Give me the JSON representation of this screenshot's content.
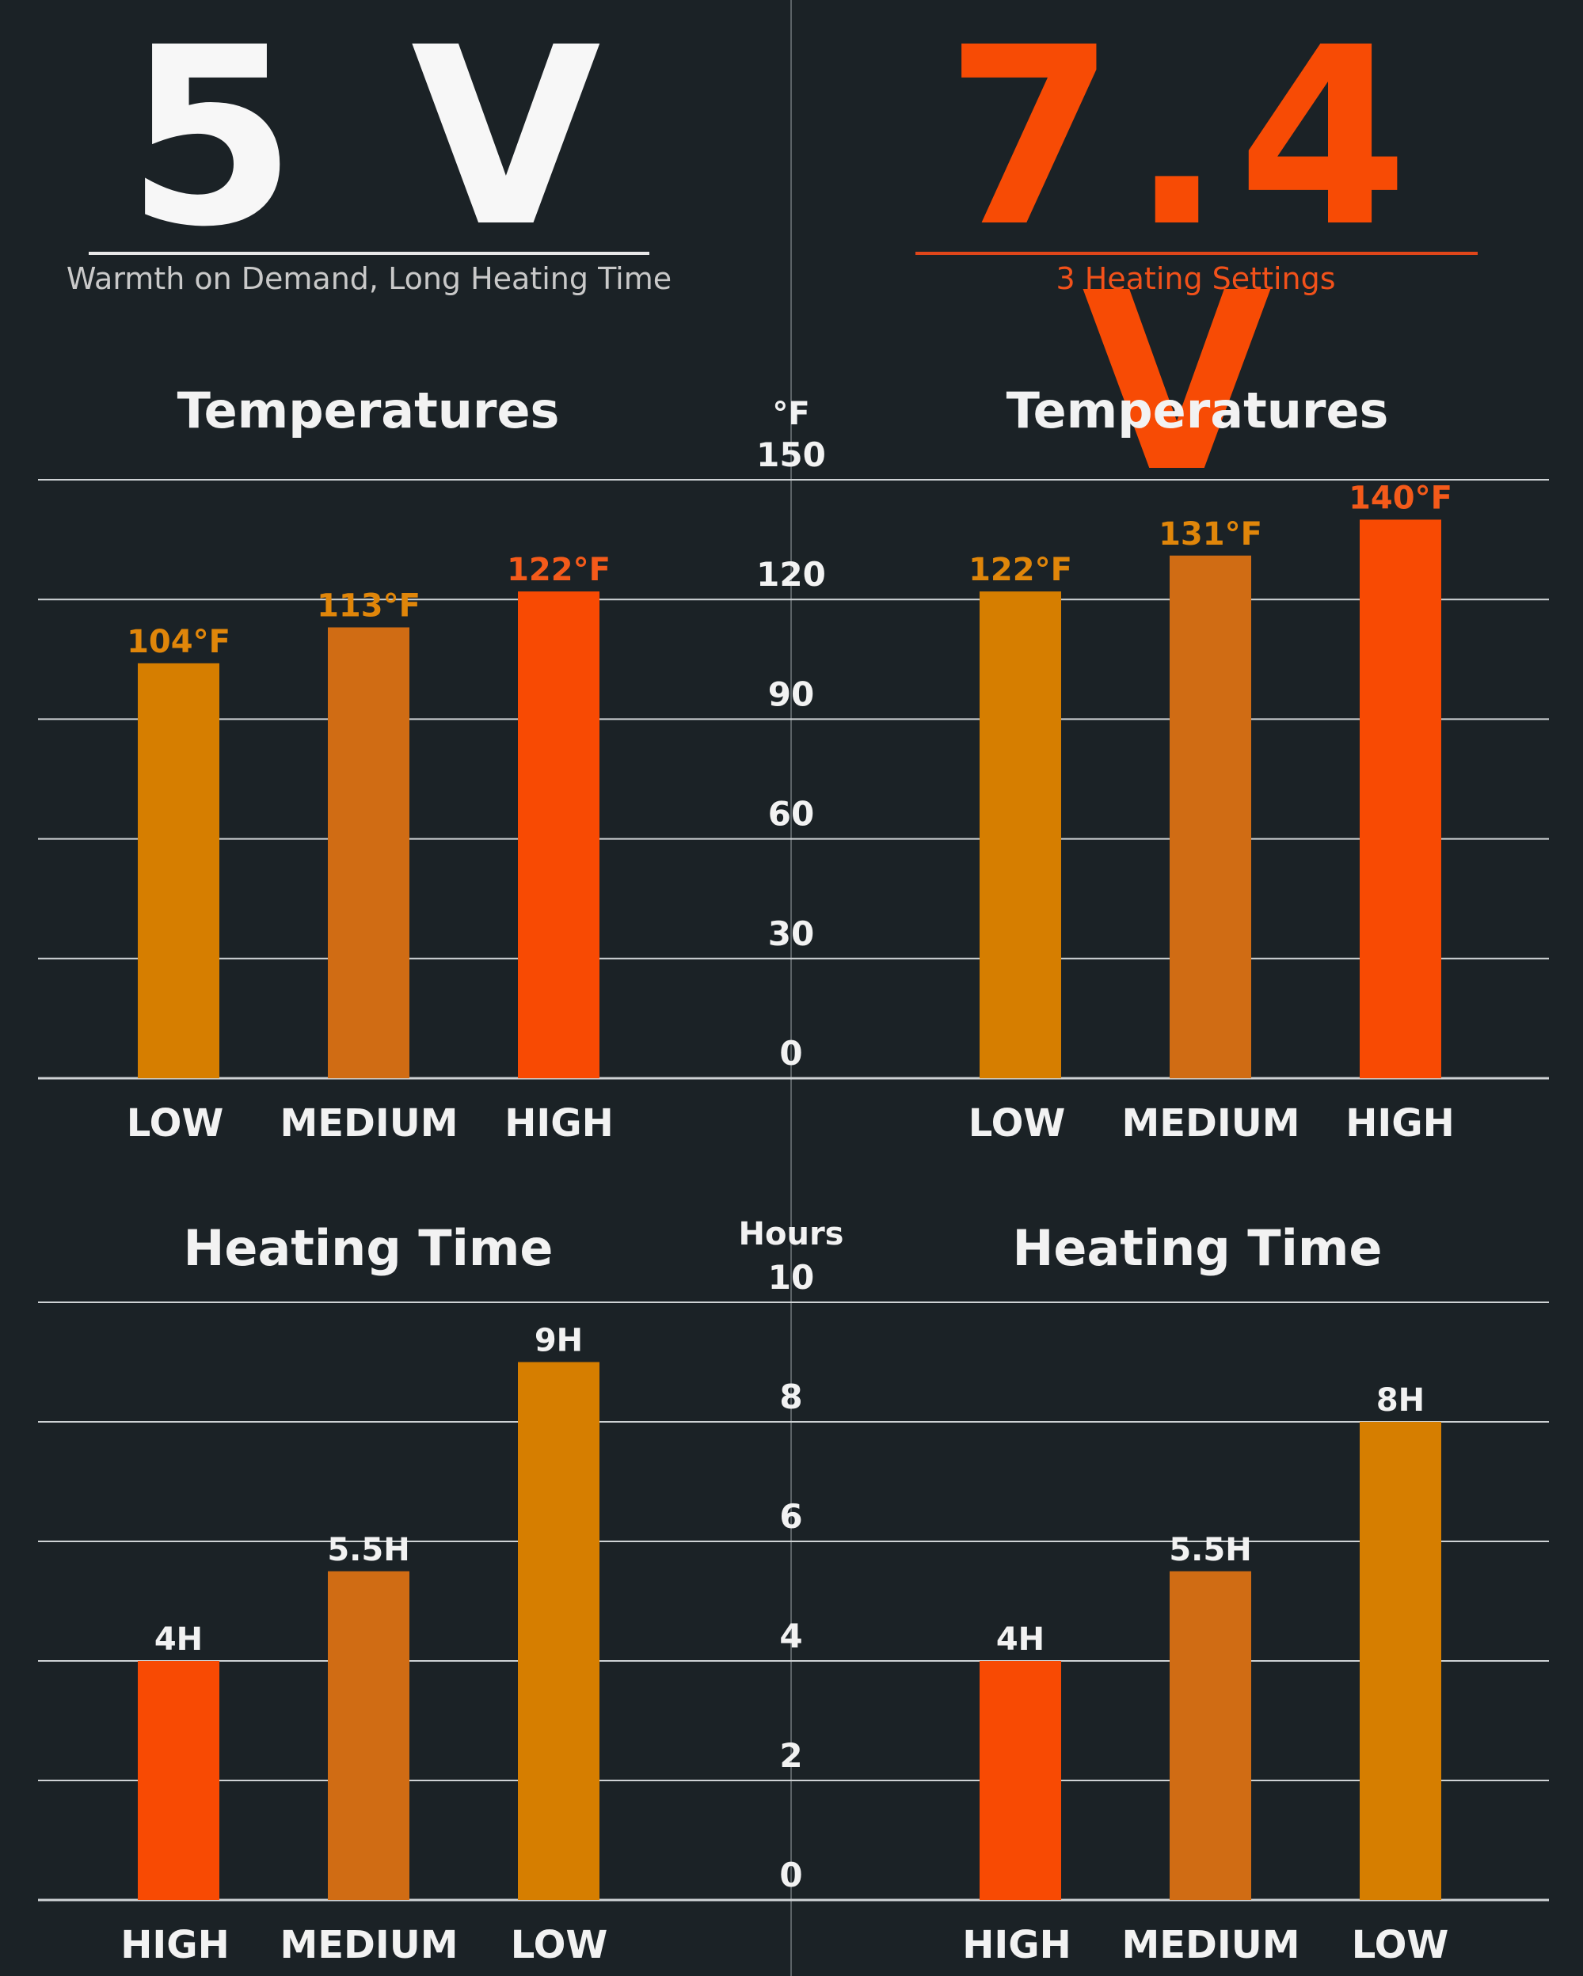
{
  "header": {
    "left_voltage": "5 V",
    "left_subtitle": "Warmth on Demand, Long Heating Time",
    "right_voltage": "7.4 V",
    "right_subtitle": "3 Heating Settings"
  },
  "colors": {
    "background": "#1b2226",
    "bar_amber": "#d67e00",
    "bar_dark_orange": "#d06c14",
    "bar_red_orange": "#f84a03",
    "label_amber": "#e0860a",
    "label_orange": "#f45a1a",
    "grid": "#cfd3d5",
    "text": "#f2f2f2"
  },
  "chart_data": [
    {
      "type": "bar",
      "title": "Temperatures",
      "panel": "5V",
      "categories": [
        "LOW",
        "MEDIUM",
        "HIGH"
      ],
      "values": [
        104,
        113,
        122
      ],
      "value_labels": [
        "104°F",
        "113°F",
        "122°F"
      ],
      "ylabel": "°F",
      "ylim": [
        0,
        150
      ],
      "yticks": [
        0,
        30,
        60,
        90,
        120,
        150
      ],
      "grid": true
    },
    {
      "type": "bar",
      "title": "Temperatures",
      "panel": "7.4V",
      "categories": [
        "LOW",
        "MEDIUM",
        "HIGH"
      ],
      "values": [
        122,
        131,
        140
      ],
      "value_labels": [
        "122°F",
        "131°F",
        "140°F"
      ],
      "ylabel": "°F",
      "ylim": [
        0,
        150
      ],
      "yticks": [
        0,
        30,
        60,
        90,
        120,
        150
      ],
      "grid": true
    },
    {
      "type": "bar",
      "title": "Heating Time",
      "panel": "5V",
      "categories": [
        "HIGH",
        "MEDIUM",
        "LOW"
      ],
      "values": [
        4,
        5.5,
        9
      ],
      "value_labels": [
        "4H",
        "5.5H",
        "9H"
      ],
      "ylabel": "Hours",
      "ylim": [
        0,
        10
      ],
      "yticks": [
        0,
        2,
        4,
        6,
        8,
        10
      ],
      "grid": true
    },
    {
      "type": "bar",
      "title": "Heating Time",
      "panel": "7.4V",
      "categories": [
        "HIGH",
        "MEDIUM",
        "LOW"
      ],
      "values": [
        4,
        5.5,
        8
      ],
      "value_labels": [
        "4H",
        "5.5H",
        "8H"
      ],
      "ylabel": "Hours",
      "ylim": [
        0,
        10
      ],
      "yticks": [
        0,
        2,
        4,
        6,
        8,
        10
      ],
      "grid": true
    }
  ]
}
